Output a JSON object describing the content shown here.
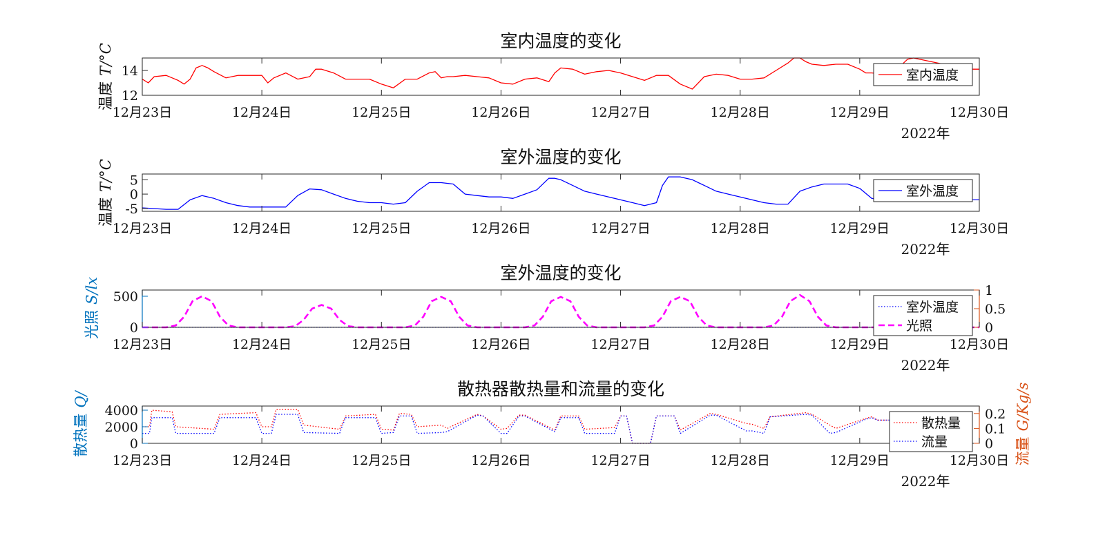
{
  "chart_data": [
    {
      "type": "line",
      "title": "室内温度的变化",
      "ylabel_cn": "温度",
      "ylabel_sym": "T/°C",
      "x_tick_labels": [
        "12月23日",
        "12月24日",
        "12月25日",
        "12月26日",
        "12月27日",
        "12月28日",
        "12月29日",
        "12月30日"
      ],
      "x_year_label": "2022年",
      "x_range_days": [
        0,
        7
      ],
      "ylim": [
        12,
        15
      ],
      "yticks": [
        12,
        14
      ],
      "legend_position": "right",
      "series": [
        {
          "name": "室内温度",
          "color": "#ff0000",
          "style": "solid",
          "x": [
            0,
            0.05,
            0.1,
            0.2,
            0.3,
            0.35,
            0.4,
            0.45,
            0.5,
            0.55,
            0.6,
            0.7,
            0.8,
            0.9,
            1.0,
            1.05,
            1.1,
            1.2,
            1.3,
            1.4,
            1.45,
            1.5,
            1.6,
            1.7,
            1.8,
            1.9,
            2.0,
            2.1,
            2.2,
            2.3,
            2.4,
            2.45,
            2.5,
            2.55,
            2.6,
            2.7,
            2.8,
            2.9,
            3.0,
            3.1,
            3.2,
            3.3,
            3.4,
            3.45,
            3.5,
            3.6,
            3.7,
            3.8,
            3.9,
            4.0,
            4.1,
            4.2,
            4.3,
            4.4,
            4.5,
            4.6,
            4.7,
            4.8,
            4.9,
            5.0,
            5.1,
            5.2,
            5.3,
            5.4,
            5.45,
            5.5,
            5.55,
            5.6,
            5.7,
            5.8,
            5.9,
            6.0,
            6.05,
            6.1,
            6.2,
            6.3,
            6.4,
            6.45,
            6.5,
            6.6,
            6.7,
            6.8,
            6.9,
            7.0
          ],
          "y": [
            13.3,
            13.0,
            13.5,
            13.6,
            13.2,
            12.9,
            13.3,
            14.2,
            14.4,
            14.2,
            13.9,
            13.4,
            13.6,
            13.6,
            13.6,
            13.0,
            13.4,
            13.8,
            13.3,
            13.5,
            14.1,
            14.1,
            13.8,
            13.3,
            13.3,
            13.3,
            12.9,
            12.6,
            13.3,
            13.3,
            13.8,
            13.9,
            13.4,
            13.5,
            13.5,
            13.6,
            13.5,
            13.4,
            13.0,
            12.9,
            13.3,
            13.4,
            13.1,
            13.8,
            14.2,
            14.1,
            13.7,
            13.9,
            14.0,
            13.8,
            13.5,
            13.2,
            13.6,
            13.6,
            12.9,
            12.5,
            13.5,
            13.7,
            13.6,
            13.3,
            13.3,
            13.4,
            14.0,
            14.6,
            15.0,
            15.0,
            14.7,
            14.5,
            14.4,
            14.5,
            14.5,
            14.1,
            13.8,
            13.8,
            13.7,
            14.0,
            14.9,
            15.0,
            14.9,
            14.7,
            14.5,
            14.2,
            14.1,
            14.1
          ]
        }
      ]
    },
    {
      "type": "line",
      "title": "室外温度的变化",
      "ylabel_cn": "温度",
      "ylabel_sym": "T/°C",
      "x_tick_labels": [
        "12月23日",
        "12月24日",
        "12月25日",
        "12月26日",
        "12月27日",
        "12月28日",
        "12月29日",
        "12月30日"
      ],
      "x_year_label": "2022年",
      "x_range_days": [
        0,
        7
      ],
      "ylim": [
        -6,
        7
      ],
      "yticks": [
        -5,
        0,
        5
      ],
      "legend_position": "right",
      "series": [
        {
          "name": "室外温度",
          "color": "#0000ff",
          "style": "solid",
          "x": [
            0,
            0.2,
            0.3,
            0.4,
            0.5,
            0.6,
            0.7,
            0.8,
            0.9,
            1.0,
            1.1,
            1.2,
            1.3,
            1.4,
            1.5,
            1.6,
            1.7,
            1.8,
            1.9,
            2.0,
            2.1,
            2.2,
            2.3,
            2.4,
            2.5,
            2.6,
            2.7,
            2.8,
            2.9,
            3.0,
            3.1,
            3.2,
            3.3,
            3.4,
            3.45,
            3.5,
            3.6,
            3.7,
            3.8,
            3.9,
            4.0,
            4.1,
            4.2,
            4.3,
            4.35,
            4.4,
            4.5,
            4.6,
            4.7,
            4.8,
            4.9,
            5.0,
            5.1,
            5.2,
            5.3,
            5.4,
            5.5,
            5.6,
            5.7,
            5.8,
            5.9,
            6.0,
            6.1,
            6.2,
            6.3,
            6.4,
            6.5,
            6.6,
            6.7,
            6.8,
            6.9,
            7.0
          ],
          "y": [
            -4.8,
            -5.3,
            -5.3,
            -2.0,
            -0.5,
            -1.5,
            -3.0,
            -4.0,
            -4.5,
            -4.5,
            -4.5,
            -4.5,
            -0.5,
            1.8,
            1.5,
            0,
            -1.5,
            -2.5,
            -3.0,
            -3.0,
            -3.5,
            -3.0,
            1.0,
            4.0,
            4.0,
            3.5,
            0,
            -0.5,
            -1.0,
            -1.0,
            -1.5,
            0,
            1.5,
            5.5,
            5.5,
            5.0,
            3.0,
            1.0,
            0,
            -1.0,
            -2.0,
            -3.0,
            -4.0,
            -3.0,
            3.0,
            6.0,
            6.0,
            5.0,
            3.0,
            1.0,
            0,
            -1.0,
            -2.0,
            -3.0,
            -3.5,
            -3.5,
            1.0,
            2.5,
            3.5,
            3.5,
            3.5,
            2.0,
            -1.5,
            -2.0,
            0,
            0.5,
            1.5,
            2.5,
            2.0,
            2.0,
            -2.0,
            -2.0
          ]
        }
      ]
    },
    {
      "type": "line",
      "title": "室外温度的变化",
      "ylabel_cn": "光照",
      "ylabel_sym": "S/lx",
      "x_tick_labels": [
        "12月23日",
        "12月24日",
        "12月25日",
        "12月26日",
        "12月27日",
        "12月28日",
        "12月29日",
        "12月30日"
      ],
      "x_year_label": "2022年",
      "x_range_days": [
        0,
        7
      ],
      "ylim": [
        0,
        600
      ],
      "yticks": [
        0,
        500
      ],
      "y2lim": [
        0,
        1
      ],
      "y2ticks": [
        0,
        0.5,
        1
      ],
      "y2tick_labels": [
        "0",
        "0.5",
        "1"
      ],
      "legend_position": "right",
      "series": [
        {
          "name": "室外温度",
          "color": "#0000ff",
          "style": "dotted",
          "axis": "left",
          "x": [
            0,
            7
          ],
          "y": [
            0,
            0
          ]
        },
        {
          "name": "光照",
          "color": "#ff00ff",
          "style": "dashed",
          "axis": "left",
          "x": [
            0,
            0.2,
            0.28,
            0.35,
            0.42,
            0.5,
            0.58,
            0.65,
            0.72,
            0.8,
            1.0,
            1.2,
            1.28,
            1.35,
            1.42,
            1.5,
            1.58,
            1.65,
            1.72,
            1.8,
            2.0,
            2.2,
            2.28,
            2.35,
            2.42,
            2.5,
            2.58,
            2.65,
            2.72,
            2.8,
            3.0,
            3.2,
            3.28,
            3.35,
            3.42,
            3.5,
            3.58,
            3.65,
            3.72,
            3.8,
            4.0,
            4.2,
            4.28,
            4.35,
            4.42,
            4.5,
            4.58,
            4.65,
            4.72,
            4.8,
            5.0,
            5.2,
            5.28,
            5.35,
            5.42,
            5.5,
            5.58,
            5.65,
            5.72,
            5.8,
            6.0,
            6.2,
            7.0
          ],
          "y": [
            0,
            0,
            30,
            170,
            420,
            500,
            420,
            170,
            30,
            0,
            0,
            0,
            20,
            120,
            300,
            360,
            300,
            120,
            20,
            0,
            0,
            0,
            30,
            170,
            420,
            490,
            420,
            170,
            30,
            0,
            0,
            0,
            30,
            170,
            420,
            490,
            420,
            170,
            30,
            0,
            0,
            0,
            30,
            170,
            420,
            490,
            420,
            170,
            30,
            0,
            0,
            0,
            30,
            170,
            420,
            520,
            420,
            170,
            30,
            0,
            0,
            0,
            0
          ]
        }
      ]
    },
    {
      "type": "line",
      "title": "散热器散热量和流量的变化",
      "ylabel_cn": "散热量",
      "ylabel_sym": "Q/",
      "y2label_cn": "流量",
      "y2label_sym": "G/Kg/s",
      "x_tick_labels": [
        "12月23日",
        "12月24日",
        "12月25日",
        "12月26日",
        "12月27日",
        "12月28日",
        "12月29日",
        "12月30日"
      ],
      "x_year_label": "2022年",
      "x_range_days": [
        0,
        7
      ],
      "ylim": [
        0,
        4500
      ],
      "yticks": [
        0,
        2000,
        4000
      ],
      "y2lim": [
        0,
        0.25
      ],
      "y2ticks": [
        0,
        0.1,
        0.2
      ],
      "legend_position": "right",
      "series": [
        {
          "name": "散热量",
          "color": "#ff0000",
          "style": "dotted",
          "axis": "left",
          "x": [
            0,
            0.06,
            0.08,
            0.25,
            0.28,
            0.6,
            0.65,
            0.95,
            1.0,
            1.08,
            1.12,
            1.3,
            1.35,
            1.65,
            1.7,
            1.95,
            2.0,
            2.1,
            2.15,
            2.25,
            2.3,
            2.5,
            2.55,
            2.8,
            2.85,
            3.0,
            3.05,
            3.15,
            3.2,
            3.45,
            3.5,
            3.65,
            3.7,
            3.95,
            4.0,
            4.05,
            4.1,
            4.25,
            4.3,
            4.45,
            4.5,
            4.75,
            4.8,
            5.05,
            5.1,
            5.2,
            5.25,
            5.55,
            5.6,
            5.75,
            5.8,
            6.05,
            6.1,
            6.15,
            6.2,
            6.4
          ],
          "y": [
            2000,
            2000,
            4000,
            3800,
            2000,
            1700,
            3500,
            3700,
            2000,
            2000,
            4100,
            4100,
            2200,
            1700,
            3300,
            3500,
            1700,
            1600,
            3600,
            3500,
            2000,
            2200,
            1800,
            3500,
            3300,
            1700,
            1800,
            3400,
            3400,
            1600,
            3300,
            3300,
            1700,
            1900,
            3300,
            3300,
            0,
            0,
            3300,
            3300,
            1600,
            3600,
            3500,
            2400,
            2300,
            1800,
            3200,
            3700,
            3500,
            2200,
            1800,
            3000,
            3200,
            2800,
            2800,
            2800
          ]
        },
        {
          "name": "流量",
          "color": "#0000ff",
          "style": "dotted",
          "axis": "left",
          "x": [
            0,
            0.06,
            0.08,
            0.25,
            0.28,
            0.6,
            0.65,
            0.95,
            1.0,
            1.08,
            1.12,
            1.3,
            1.35,
            1.65,
            1.7,
            1.95,
            2.0,
            2.1,
            2.15,
            2.25,
            2.3,
            2.5,
            2.55,
            2.8,
            2.85,
            3.0,
            3.05,
            3.15,
            3.2,
            3.45,
            3.5,
            3.65,
            3.7,
            3.95,
            4.0,
            4.05,
            4.1,
            4.25,
            4.3,
            4.45,
            4.5,
            4.75,
            4.8,
            5.05,
            5.1,
            5.2,
            5.25,
            5.55,
            5.6,
            5.75,
            5.8,
            6.05,
            6.1,
            6.15,
            6.2,
            6.4
          ],
          "y": [
            1200,
            1200,
            3100,
            3100,
            1200,
            1200,
            3100,
            3100,
            1200,
            1200,
            3500,
            3500,
            1300,
            1200,
            3100,
            3100,
            1200,
            1300,
            3300,
            3300,
            1200,
            1300,
            1400,
            3400,
            3300,
            1200,
            1200,
            3300,
            3300,
            1400,
            3100,
            3100,
            1200,
            1200,
            3300,
            3300,
            0,
            0,
            3300,
            3300,
            1200,
            3400,
            3400,
            1500,
            1500,
            1200,
            3200,
            3500,
            3400,
            1200,
            1300,
            2900,
            3100,
            2800,
            2800,
            2800
          ]
        }
      ]
    }
  ]
}
